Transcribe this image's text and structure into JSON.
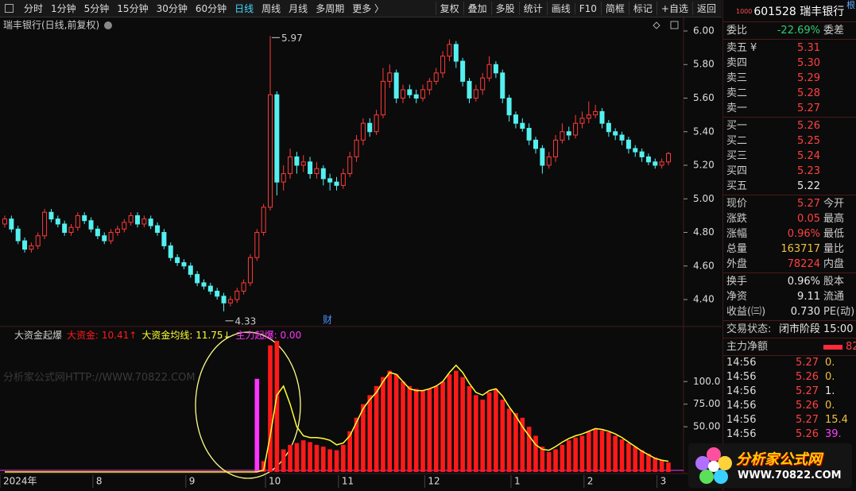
{
  "toolbar": {
    "periods": [
      "分时",
      "1分钟",
      "5分钟",
      "15分钟",
      "30分钟",
      "60分钟",
      "日线",
      "周线",
      "月线",
      "多周期",
      "更多 〉"
    ],
    "tools": [
      "复权",
      "叠加",
      "多股",
      "统计",
      "画线",
      "F10",
      "简框",
      "标记",
      "+自选",
      "返回"
    ]
  },
  "chart_data": [
    {
      "type": "candlestick",
      "title": "瑞丰银行(日线,前复权)",
      "up_color": "#ff3a3a",
      "down_color": "#54f0f0",
      "categories": [
        "2024年",
        null,
        null,
        null,
        null,
        null,
        null,
        null,
        null,
        null,
        null,
        null,
        null,
        null,
        "8",
        null,
        null,
        null,
        null,
        null,
        null,
        null,
        null,
        null,
        null,
        null,
        null,
        null,
        "9",
        null,
        null,
        null,
        null,
        null,
        null,
        null,
        null,
        null,
        null,
        null,
        "10",
        null,
        null,
        null,
        null,
        null,
        null,
        null,
        null,
        null,
        null,
        "11",
        null,
        null,
        null,
        null,
        null,
        null,
        null,
        null,
        null,
        null,
        null,
        null,
        "12",
        null,
        null,
        null,
        null,
        null,
        null,
        null,
        null,
        null,
        null,
        null,
        null,
        "1",
        null,
        null,
        null,
        null,
        null,
        null,
        null,
        null,
        null,
        null,
        "2",
        null,
        null,
        null,
        null,
        null,
        null,
        null,
        null,
        null,
        null,
        "3",
        null
      ],
      "open": [
        4.85,
        4.88,
        4.82,
        4.75,
        4.7,
        4.72,
        4.78,
        4.92,
        4.88,
        4.85,
        4.8,
        4.83,
        4.9,
        4.87,
        4.82,
        4.78,
        4.75,
        4.8,
        4.82,
        4.86,
        4.9,
        4.85,
        4.88,
        4.84,
        4.8,
        4.72,
        4.65,
        4.62,
        4.6,
        4.55,
        4.5,
        4.48,
        4.45,
        4.42,
        4.38,
        4.4,
        4.45,
        4.5,
        4.65,
        4.8,
        4.95,
        5.62,
        5.1,
        5.15,
        5.25,
        5.2,
        5.22,
        5.15,
        5.18,
        5.12,
        5.1,
        5.08,
        5.15,
        5.25,
        5.35,
        5.45,
        5.4,
        5.5,
        5.7,
        5.75,
        5.6,
        5.65,
        5.62,
        5.6,
        5.65,
        5.7,
        5.75,
        5.85,
        5.92,
        5.82,
        5.7,
        5.6,
        5.65,
        5.72,
        5.8,
        5.75,
        5.6,
        5.5,
        5.45,
        5.42,
        5.35,
        5.3,
        5.2,
        5.25,
        5.35,
        5.4,
        5.38,
        5.45,
        5.48,
        5.5,
        5.52,
        5.45,
        5.4,
        5.38,
        5.35,
        5.3,
        5.28,
        5.25,
        5.22,
        5.2,
        5.22
      ],
      "close": [
        4.88,
        4.82,
        4.75,
        4.7,
        4.72,
        4.78,
        4.92,
        4.88,
        4.85,
        4.8,
        4.83,
        4.9,
        4.87,
        4.82,
        4.78,
        4.75,
        4.8,
        4.82,
        4.86,
        4.9,
        4.85,
        4.88,
        4.84,
        4.8,
        4.72,
        4.65,
        4.62,
        4.6,
        4.55,
        4.5,
        4.48,
        4.45,
        4.42,
        4.38,
        4.4,
        4.45,
        4.5,
        4.65,
        4.8,
        4.95,
        5.62,
        5.1,
        5.15,
        5.25,
        5.2,
        5.22,
        5.15,
        5.18,
        5.12,
        5.1,
        5.08,
        5.15,
        5.25,
        5.35,
        5.45,
        5.4,
        5.5,
        5.7,
        5.75,
        5.6,
        5.65,
        5.62,
        5.6,
        5.65,
        5.7,
        5.75,
        5.85,
        5.92,
        5.82,
        5.7,
        5.6,
        5.65,
        5.72,
        5.8,
        5.75,
        5.6,
        5.5,
        5.45,
        5.42,
        5.35,
        5.3,
        5.2,
        5.25,
        5.35,
        5.4,
        5.38,
        5.45,
        5.48,
        5.5,
        5.52,
        5.45,
        5.4,
        5.38,
        5.35,
        5.3,
        5.28,
        5.25,
        5.22,
        5.2,
        5.22,
        5.27
      ],
      "high": [
        4.9,
        4.9,
        4.84,
        4.77,
        4.74,
        4.8,
        4.94,
        4.94,
        4.9,
        4.87,
        4.85,
        4.92,
        4.92,
        4.89,
        4.84,
        4.8,
        4.82,
        4.84,
        4.88,
        4.92,
        4.92,
        4.9,
        4.9,
        4.86,
        4.82,
        4.74,
        4.67,
        4.64,
        4.62,
        4.57,
        4.52,
        4.5,
        4.47,
        4.44,
        4.42,
        4.47,
        4.52,
        4.67,
        4.82,
        4.97,
        5.97,
        5.64,
        5.2,
        5.3,
        5.28,
        5.26,
        5.25,
        5.22,
        5.2,
        5.15,
        5.13,
        5.18,
        5.28,
        5.38,
        5.48,
        5.48,
        5.53,
        5.78,
        5.8,
        5.77,
        5.68,
        5.68,
        5.65,
        5.68,
        5.72,
        5.78,
        5.88,
        5.95,
        5.94,
        5.84,
        5.72,
        5.68,
        5.75,
        5.85,
        5.82,
        5.77,
        5.62,
        5.52,
        5.48,
        5.45,
        5.37,
        5.32,
        5.28,
        5.38,
        5.45,
        5.43,
        5.5,
        5.52,
        5.58,
        5.56,
        5.54,
        5.47,
        5.42,
        5.4,
        5.37,
        5.32,
        5.3,
        5.27,
        5.24,
        5.24,
        5.28
      ],
      "low": [
        4.83,
        4.8,
        4.73,
        4.68,
        4.68,
        4.7,
        4.76,
        4.86,
        4.83,
        4.78,
        4.78,
        4.81,
        4.85,
        4.8,
        4.76,
        4.73,
        4.73,
        4.78,
        4.8,
        4.84,
        4.83,
        4.83,
        4.82,
        4.78,
        4.7,
        4.63,
        4.6,
        4.58,
        4.53,
        4.48,
        4.46,
        4.43,
        4.4,
        4.33,
        4.36,
        4.38,
        4.43,
        4.48,
        4.63,
        4.78,
        4.93,
        5.02,
        5.05,
        5.12,
        5.15,
        5.16,
        5.12,
        5.12,
        5.08,
        5.05,
        5.05,
        5.06,
        5.13,
        5.22,
        5.32,
        5.37,
        5.38,
        5.48,
        5.66,
        5.57,
        5.57,
        5.6,
        5.57,
        5.58,
        5.62,
        5.68,
        5.72,
        5.82,
        5.78,
        5.67,
        5.57,
        5.58,
        5.62,
        5.7,
        5.72,
        5.57,
        5.46,
        5.42,
        5.4,
        5.32,
        5.27,
        5.15,
        5.18,
        5.22,
        5.33,
        5.35,
        5.36,
        5.42,
        5.45,
        5.48,
        5.42,
        5.37,
        5.35,
        5.32,
        5.27,
        5.25,
        5.22,
        5.2,
        5.18,
        5.18,
        5.2
      ],
      "ylim": [
        4.244,
        6.052
      ],
      "yticks": [
        {
          "value": 6,
          "label": "6.00"
        },
        {
          "value": 5.8,
          "label": "5.80"
        },
        {
          "value": 5.6,
          "label": "5.60"
        },
        {
          "value": 5.4,
          "label": "5.40"
        },
        {
          "value": 5.2,
          "label": "5.20"
        },
        {
          "value": 5,
          "label": "5.00"
        },
        {
          "value": 4.8,
          "label": "4.80"
        },
        {
          "value": 4.6,
          "label": "4.60"
        },
        {
          "value": 4.4,
          "label": "4.40"
        }
      ],
      "annotations": [
        "5.97",
        "4.33",
        "财"
      ]
    },
    {
      "type": "bar",
      "title": "大资金起爆",
      "ylim": [
        0,
        160
      ],
      "yticks": [
        {
          "value": 100,
          "label": "100.0"
        },
        {
          "value": 75,
          "label": "75.00"
        },
        {
          "value": 50,
          "label": "50.00"
        }
      ],
      "series": [
        {
          "name": "大资金",
          "color": "#ff1a1a",
          "last_label": "10.41↑",
          "values": [
            0,
            0,
            0,
            0,
            0,
            0,
            0,
            0,
            0,
            0,
            0,
            0,
            0,
            0,
            0,
            0,
            0,
            0,
            0,
            0,
            0,
            0,
            0,
            0,
            0,
            0,
            0,
            0,
            0,
            0,
            0,
            0,
            0,
            0,
            0,
            0,
            0,
            0,
            0,
            12,
            140,
            145,
            25,
            30,
            32,
            35,
            33,
            30,
            28,
            25,
            24,
            30,
            45,
            60,
            75,
            85,
            95,
            105,
            112,
            108,
            100,
            95,
            92,
            90,
            92,
            95,
            100,
            108,
            112,
            105,
            95,
            85,
            80,
            88,
            92,
            80,
            70,
            65,
            60,
            50,
            40,
            28,
            22,
            25,
            30,
            35,
            38,
            40,
            45,
            48,
            46,
            44,
            40,
            36,
            32,
            28,
            24,
            20,
            16,
            13,
            10.41
          ]
        },
        {
          "name": "大资金均线",
          "type": "line",
          "color": "#ffff33",
          "last_label": "11.75↓",
          "values": [
            0,
            0,
            0,
            0,
            0,
            0,
            0,
            0,
            0,
            0,
            0,
            0,
            0,
            0,
            0,
            0,
            0,
            0,
            0,
            0,
            0,
            0,
            0,
            0,
            0,
            0,
            0,
            0,
            0,
            0,
            0,
            0,
            0,
            0,
            0,
            0,
            0,
            0,
            0,
            2,
            40,
            85,
            95,
            75,
            50,
            40,
            38,
            38,
            37,
            35,
            30,
            32,
            40,
            55,
            70,
            80,
            88,
            100,
            110,
            108,
            100,
            92,
            90,
            90,
            92,
            95,
            100,
            110,
            118,
            110,
            98,
            88,
            85,
            90,
            92,
            84,
            72,
            62,
            50,
            40,
            30,
            25,
            24,
            28,
            33,
            37,
            40,
            42,
            45,
            48,
            47,
            45,
            42,
            38,
            33,
            28,
            23,
            19,
            15,
            13,
            11.75
          ]
        },
        {
          "name": "主力起爆",
          "color": "#ff33ff",
          "last_label": "0.00",
          "values": [
            0,
            0,
            0,
            0,
            0,
            0,
            0,
            0,
            0,
            0,
            0,
            0,
            0,
            0,
            0,
            0,
            0,
            0,
            0,
            0,
            0,
            0,
            0,
            0,
            0,
            0,
            0,
            0,
            0,
            0,
            0,
            0,
            0,
            0,
            0,
            0,
            0,
            0,
            103,
            0,
            0,
            0,
            0,
            0,
            0,
            0,
            0,
            0,
            0,
            0,
            0,
            0,
            0,
            0,
            0,
            0,
            0,
            0,
            0,
            0,
            0,
            0,
            0,
            0,
            0,
            0,
            0,
            0,
            0,
            0,
            0,
            0,
            0,
            0,
            0,
            0,
            0,
            0,
            0,
            0,
            0,
            0,
            0,
            0,
            0,
            0,
            0,
            0,
            0,
            0,
            0,
            0,
            0,
            0,
            0,
            0,
            0,
            0,
            0,
            0,
            0
          ]
        }
      ]
    }
  ],
  "watermark": "分析家公式网HTTP://WWW.70822.COM",
  "quote": {
    "side_tab": "根",
    "badge": "1000",
    "code": "601528",
    "name": "瑞丰银行",
    "ratio": {
      "label": "委比",
      "value": "-22.69%",
      "label2": "委差",
      "color": "#2ecc71"
    },
    "asks": [
      {
        "label": "卖五",
        "currency": "¥",
        "price": "5.31",
        "color": "#ff4040"
      },
      {
        "label": "卖四",
        "price": "5.30",
        "color": "#ff4040"
      },
      {
        "label": "卖三",
        "price": "5.29",
        "color": "#ff4040"
      },
      {
        "label": "卖二",
        "price": "5.28",
        "color": "#ff4040"
      },
      {
        "label": "卖一",
        "price": "5.27",
        "color": "#ff4040"
      }
    ],
    "bids": [
      {
        "label": "买一",
        "price": "5.26",
        "color": "#ff4040"
      },
      {
        "label": "买二",
        "price": "5.25",
        "color": "#ff4040"
      },
      {
        "label": "买三",
        "price": "5.24",
        "color": "#ff4040"
      },
      {
        "label": "买四",
        "price": "5.23",
        "color": "#ff4040"
      },
      {
        "label": "买五",
        "price": "5.22",
        "color": "#e8e8e8"
      }
    ],
    "stats_a": [
      {
        "label": "现价",
        "value": "5.27",
        "label2": "今开",
        "color": "#ff4040"
      },
      {
        "label": "涨跌",
        "value": "0.05",
        "label2": "最高",
        "color": "#ff4040"
      },
      {
        "label": "涨幅",
        "value": "0.96%",
        "label2": "最低",
        "color": "#ff4040"
      },
      {
        "label": "总量",
        "value": "163717",
        "label2": "量比",
        "color": "#f0c040"
      },
      {
        "label": "外盘",
        "value": "78224",
        "label2": "内盘",
        "color": "#ff4040"
      }
    ],
    "stats_b": [
      {
        "label": "换手",
        "value": "0.96%",
        "label2": "股本",
        "color": "#e8e8e8"
      },
      {
        "label": "净资",
        "value": "9.11",
        "label2": "流通",
        "color": "#e8e8e8"
      },
      {
        "label": "收益(㈢)",
        "value": "0.730",
        "label2": "PE(动)",
        "color": "#e8e8e8"
      }
    ],
    "status": {
      "label": "交易状态:",
      "value": "闭市阶段",
      "time": "15:00"
    },
    "flow": {
      "label": "主力净额",
      "value": "82"
    },
    "trades": [
      {
        "time": "14:56",
        "price": "5.27",
        "vol": "0.",
        "color": "#f0c040"
      },
      {
        "time": "14:56",
        "price": "5.26",
        "vol": "0.",
        "color": "#f0c040"
      },
      {
        "time": "14:56",
        "price": "5.27",
        "vol": "1.",
        "color": "#e8e8e8"
      },
      {
        "time": "14:56",
        "price": "5.26",
        "vol": "0.",
        "color": "#f0c040"
      },
      {
        "time": "14:56",
        "price": "5.27",
        "vol": "15.4",
        "color": "#f0c040"
      },
      {
        "time": "14:56",
        "price": "5.26",
        "vol": "39.",
        "color": "#ff40ff"
      }
    ]
  },
  "logo": {
    "name": "分析家公式网",
    "url": "WWW.70822.COM"
  }
}
